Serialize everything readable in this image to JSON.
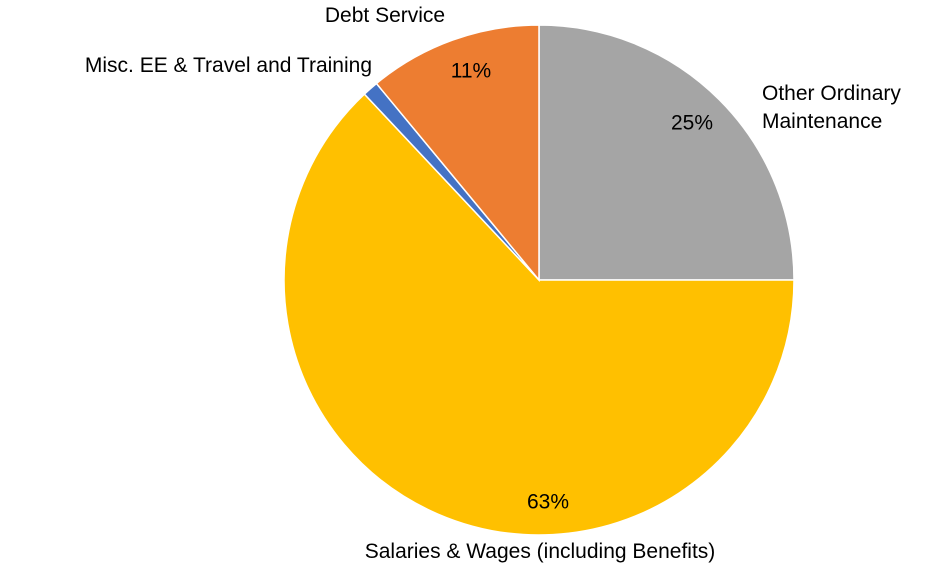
{
  "chart_data": {
    "type": "pie",
    "categories": [
      "Other Ordinary Maintenance",
      "Salaries & Wages (including Benefits)",
      "Misc. EE & Travel and Training",
      "Debt Service"
    ],
    "values": [
      25,
      63,
      1,
      11
    ],
    "value_labels": [
      "25%",
      "63%",
      null,
      "11%"
    ],
    "colors": [
      "#a5a5a5",
      "#ffc000",
      "#4472c4",
      "#ed7d31"
    ]
  }
}
